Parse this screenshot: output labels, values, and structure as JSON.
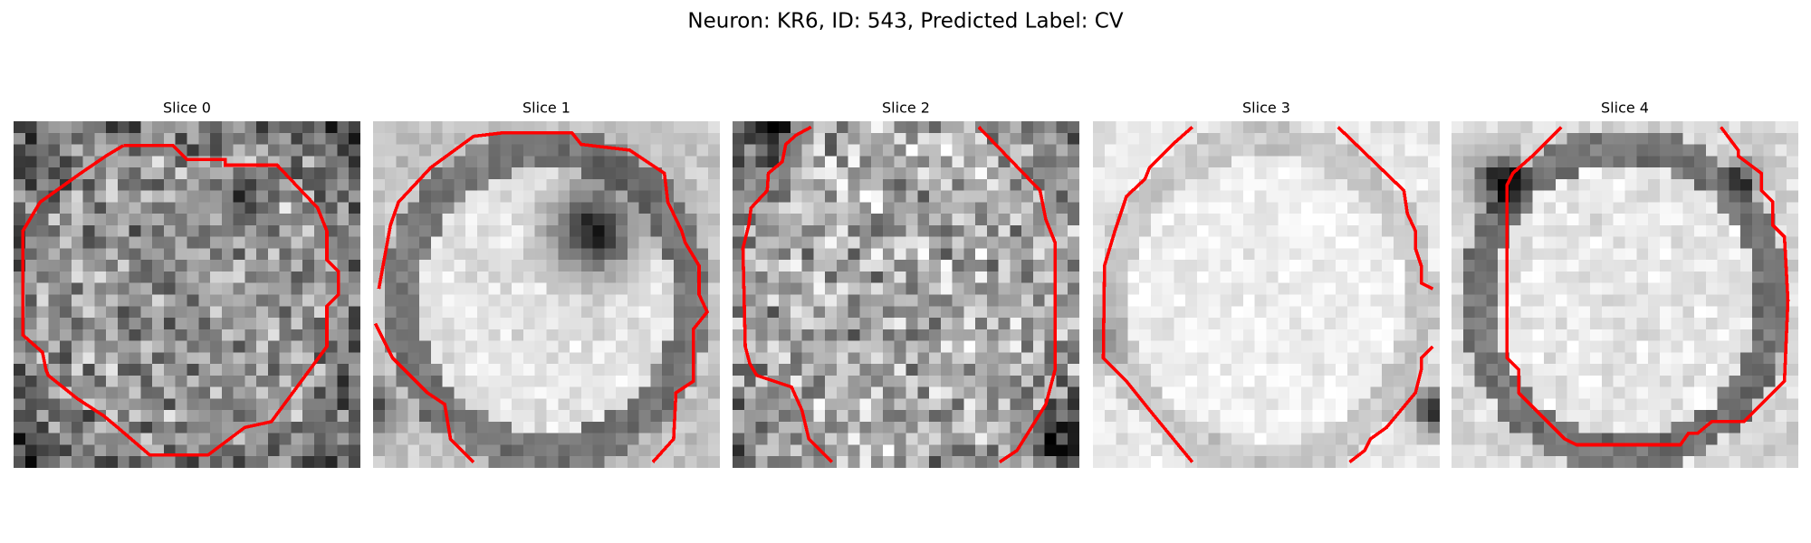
{
  "title": "Neuron: KR6, ID: 543, Predicted Label: CV",
  "panels": [
    {
      "title": "Slice 0"
    },
    {
      "title": "Slice 1"
    },
    {
      "title": "Slice 2"
    },
    {
      "title": "Slice 3"
    },
    {
      "title": "Slice 4"
    }
  ]
}
